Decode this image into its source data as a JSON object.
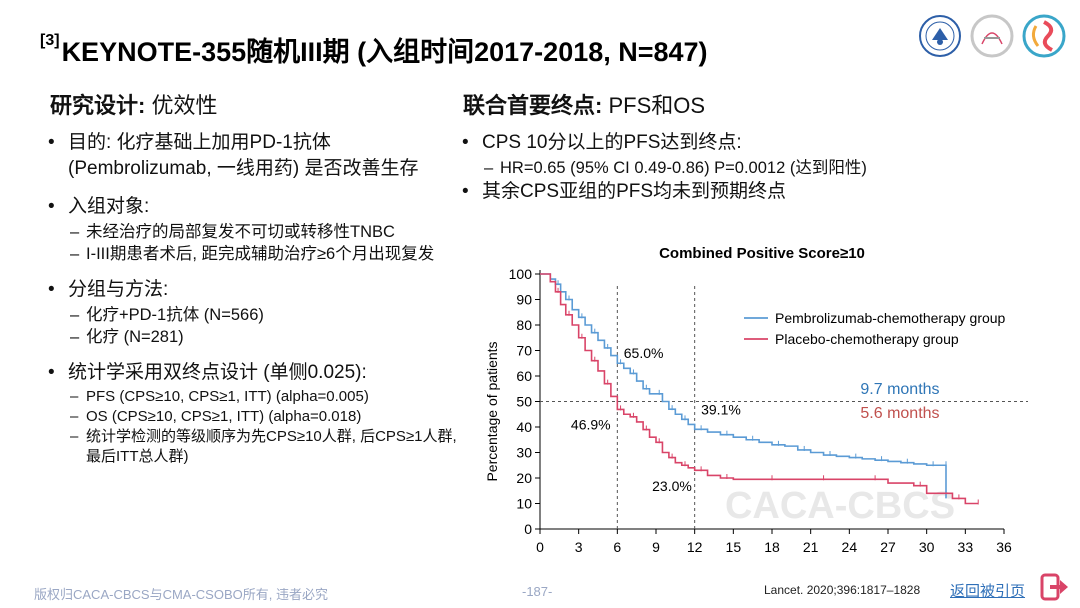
{
  "header": {
    "title_sup": "[3]",
    "title": "KEYNOTE-355随机III期 (入组时间2017-2018, N=847)"
  },
  "left": {
    "heading_label": "研究设计:",
    "heading_value": "优效性",
    "bullets": [
      {
        "text": "目的: 化疗基础上加用PD-1抗体 (Pembrolizumab, 一线用药) 是否改善生存",
        "subs": []
      },
      {
        "text": "入组对象:",
        "subs": [
          "未经治疗的局部复发不可切或转移性TNBC",
          "I-III期患者术后, 距完成辅助治疗≥6个月出现复发"
        ]
      },
      {
        "text": "分组与方法:",
        "subs": [
          "化疗+PD-1抗体 (N=566)",
          "化疗 (N=281)"
        ]
      },
      {
        "text": "统计学采用双终点设计 (单侧0.025):",
        "subs": [
          "PFS (CPS≥10, CPS≥1, ITT) (alpha=0.005)",
          "OS (CPS≥10, CPS≥1, ITT) (alpha=0.018)",
          "统计学检测的等级顺序为先CPS≥10人群, 后CPS≥1人群, 最后ITT总人群)"
        ]
      }
    ]
  },
  "right": {
    "heading_label": "联合首要终点:",
    "heading_value": "PFS和OS",
    "bullets": [
      {
        "text": "CPS 10分以上的PFS达到终点:",
        "subs": [
          "HR=0.65 (95% CI 0.49-0.86) P=0.0012 (达到阳性)"
        ]
      },
      {
        "text": "其余CPS亚组的PFS均未到预期终点",
        "subs": []
      }
    ]
  },
  "chart_data": {
    "type": "line",
    "title": "Combined Positive Score≥10",
    "xlabel": "",
    "ylabel": "Percentage of patients",
    "xlim": [
      0,
      36
    ],
    "ylim": [
      0,
      100
    ],
    "xticks": [
      0,
      3,
      6,
      9,
      12,
      15,
      18,
      21,
      24,
      27,
      30,
      33,
      36
    ],
    "yticks": [
      0,
      10,
      20,
      30,
      40,
      50,
      60,
      70,
      80,
      90,
      100
    ],
    "legend_position": "top-right",
    "watermark": "CACA-CBCS",
    "series": [
      {
        "name": "Pembrolizumab-chemotherapy group",
        "color": "#5b9bd5",
        "x": [
          0,
          0.8,
          1.2,
          1.6,
          2,
          2.5,
          3,
          3.5,
          4,
          4.5,
          5,
          5.5,
          6,
          6.5,
          7,
          7.5,
          8,
          8.5,
          9,
          9.5,
          10,
          10.5,
          11,
          11.5,
          12,
          13,
          14,
          15,
          16,
          17,
          18,
          19,
          20,
          21,
          22,
          23,
          24,
          25,
          26,
          27,
          28,
          29,
          30,
          31,
          31.5,
          31.5
        ],
        "y": [
          100,
          98,
          96,
          93,
          90,
          86,
          83,
          80,
          77,
          74,
          71,
          68,
          65,
          63,
          61,
          58,
          55,
          53,
          53,
          50,
          47,
          45,
          43,
          41,
          39.1,
          38,
          37,
          36,
          35,
          34,
          33,
          32.5,
          31,
          30,
          29,
          28.5,
          28,
          27.5,
          27,
          26.5,
          26,
          25.5,
          25,
          25,
          25,
          12
        ]
      },
      {
        "name": "Placebo-chemotherapy group",
        "color": "#d94468",
        "x": [
          0,
          0.8,
          1.2,
          1.6,
          2,
          2.5,
          3,
          3.5,
          4,
          4.5,
          5,
          5.5,
          6,
          6.5,
          7,
          7.5,
          8,
          8.5,
          9,
          9.5,
          10,
          10.5,
          11,
          11.5,
          12,
          13,
          14,
          15,
          17,
          19,
          21,
          23,
          25,
          27,
          29,
          30,
          32,
          33,
          34
        ],
        "y": [
          100,
          97,
          93,
          88,
          84,
          80,
          75,
          70,
          66,
          62,
          57,
          52,
          46.9,
          45,
          44,
          42,
          39,
          36,
          34,
          30,
          28,
          26,
          25,
          24,
          23,
          21,
          20,
          19.5,
          19.5,
          19.5,
          19.5,
          19.5,
          19.5,
          18,
          17,
          14,
          12,
          10,
          10
        ]
      }
    ],
    "annotations": [
      {
        "text": "65.0%",
        "x": 6.5,
        "y": 67
      },
      {
        "text": "46.9%",
        "x": 2.4,
        "y": 39
      },
      {
        "text": "39.1%",
        "x": 12.5,
        "y": 45
      },
      {
        "text": "23.0%",
        "x": 8.7,
        "y": 15
      },
      {
        "text": "9.7 months",
        "x": 31,
        "y": 53,
        "color": "#2e75b6"
      },
      {
        "text": "5.6 months",
        "x": 31,
        "y": 43.5,
        "color": "#c0504d"
      }
    ],
    "reference_lines": {
      "vertical_x": [
        6,
        12
      ],
      "horizontal_y": 50
    }
  },
  "footer": {
    "copyright": "版权归CACA-CBCS与CMA-CSOBO所有, 违者必究",
    "page": "-187-",
    "reference": "Lancet. 2020;396:1817–1828",
    "back_link": "返回被引页"
  }
}
